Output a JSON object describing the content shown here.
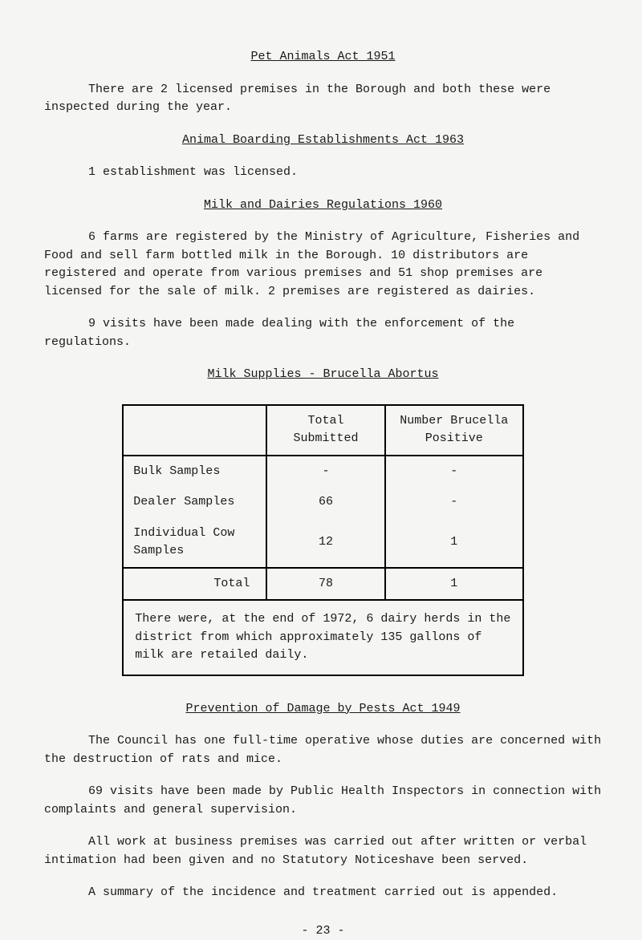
{
  "heading1": "Pet Animals Act 1951",
  "para1": "There are 2 licensed premises in the Borough and both these were inspected during the year.",
  "heading2": "Animal Boarding Establishments Act 1963",
  "para2": "1 establishment was licensed.",
  "heading3": "Milk and Dairies Regulations 1960",
  "para3": "6 farms are registered by the Ministry of Agriculture, Fisheries and Food and sell farm bottled milk in the Borough.  10 distributors are registered and operate from various premises and 51 shop premises are licensed for the sale of milk.  2 premises are registered as dairies.",
  "para4": "9 visits have been made dealing with the enforcement of the regulations.",
  "heading4": "Milk Supplies - Brucella Abortus",
  "table": {
    "header_col1": "",
    "header_col2": "Total Submitted",
    "header_col3": "Number Brucella Positive",
    "rows": [
      {
        "label": "Bulk Samples",
        "submitted": "-",
        "positive": "-"
      },
      {
        "label": "Dealer Samples",
        "submitted": "66",
        "positive": "-"
      },
      {
        "label": "Individual Cow Samples",
        "submitted": "12",
        "positive": "1"
      }
    ],
    "total_label": "Total",
    "total_submitted": "78",
    "total_positive": "1",
    "footer": "There were, at the end of 1972, 6 dairy herds in the district from which approximately 135 gallons of milk are retailed daily."
  },
  "heading5": "Prevention of Damage by Pests Act 1949",
  "para5": "The Council has one full-time operative whose duties are concerned with the destruction of rats and mice.",
  "para6": "69 visits have been made by Public Health Inspectors in connection with complaints and general supervision.",
  "para7": "All work at business premises was carried out after written or verbal intimation had been given and no Statutory Noticeshave been served.",
  "para8": "A summary of the incidence and treatment carried out is appended.",
  "page_num": "- 23 -"
}
